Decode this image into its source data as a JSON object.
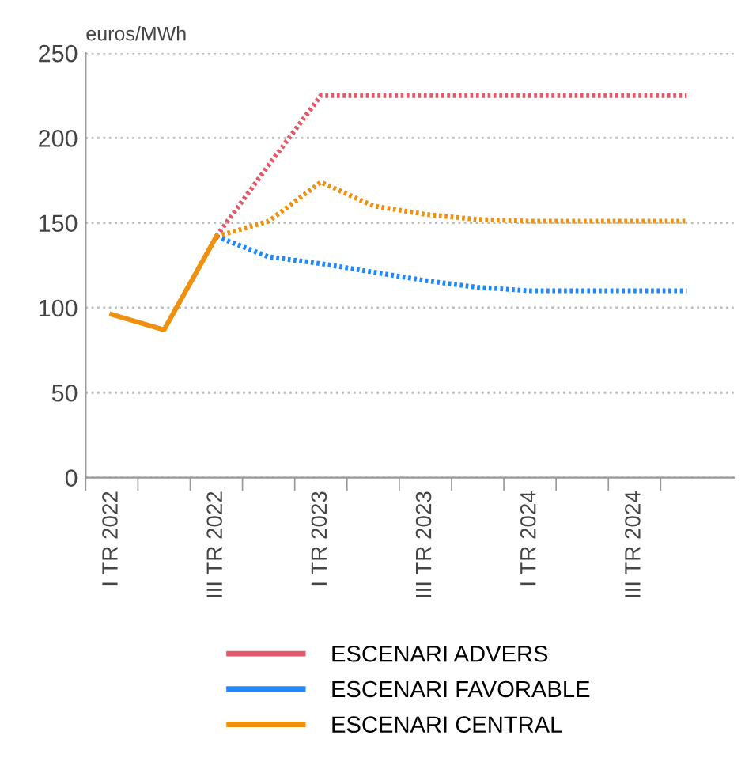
{
  "chart_data": {
    "type": "line",
    "ylabel": "euros/MWh",
    "categories": [
      "I TR 2022",
      null,
      "III TR 2022",
      null,
      "I TR 2023",
      null,
      "III TR 2023",
      null,
      "I TR 2024",
      null,
      "III TR 2024",
      null
    ],
    "series": [
      {
        "name": "ESCENARI ADVERS",
        "color": "#e05a6a",
        "line_style": "dotted",
        "values": [
          null,
          null,
          142,
          184,
          225,
          225,
          225,
          225,
          225,
          225,
          225,
          225
        ]
      },
      {
        "name": "ESCENARI FAVORABLE",
        "color": "#1e88ff",
        "line_style": "dotted",
        "values": [
          null,
          null,
          142,
          130,
          126,
          121,
          116,
          112,
          110,
          110,
          110,
          110
        ]
      },
      {
        "name": "ESCENARI CENTRAL",
        "color": "#f0900f",
        "line_style": "dotted",
        "values": [
          null,
          null,
          142,
          151,
          174,
          160,
          155,
          152,
          151,
          151,
          151,
          151
        ]
      },
      {
        "color": "#f0900f",
        "line_style": "solid",
        "values": [
          96,
          87,
          142,
          null,
          null,
          null,
          null,
          null,
          null,
          null,
          null,
          null
        ]
      }
    ],
    "ylim": [
      0,
      250
    ],
    "yticks": [
      0,
      50,
      100,
      150,
      200,
      250
    ],
    "grid": "y",
    "legend": "bottom",
    "marker": "none"
  }
}
